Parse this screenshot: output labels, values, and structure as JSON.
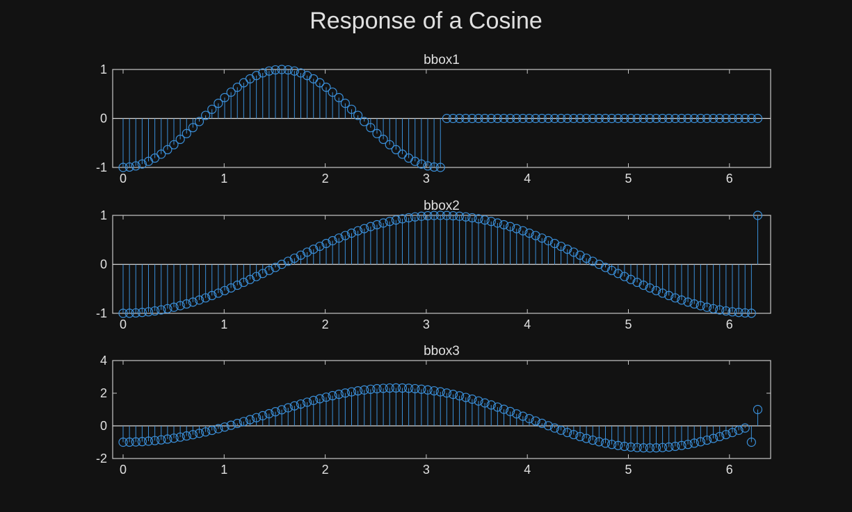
{
  "figure": {
    "title": "Response of a Cosine",
    "background": "#121212",
    "axes_color": "#c8c8c8",
    "text_color": "#e0e0e0",
    "series_color": "#3a8fd9"
  },
  "chart_data": [
    {
      "type": "stem",
      "title": "bbox1",
      "xlim": [
        0,
        6.28
      ],
      "ylim": [
        -1,
        1
      ],
      "xticks": [
        0,
        1,
        2,
        3,
        4,
        5,
        6
      ],
      "yticks": [
        -1,
        0,
        1
      ],
      "x_step": 0.0628,
      "n_points": 101,
      "values_description_formula": "y = -cos(2x) for x <= 3.08, else 0",
      "y": [
        -1.0,
        -0.992,
        -0.969,
        -0.93,
        -0.876,
        -0.809,
        -0.729,
        -0.637,
        -0.536,
        -0.426,
        -0.309,
        -0.187,
        -0.063,
        0.063,
        0.187,
        0.309,
        0.426,
        0.536,
        0.637,
        0.729,
        0.809,
        0.876,
        0.93,
        0.969,
        0.992,
        1.0,
        0.992,
        0.969,
        0.93,
        0.876,
        0.809,
        0.729,
        0.637,
        0.536,
        0.426,
        0.309,
        0.187,
        0.063,
        -0.063,
        -0.187,
        -0.309,
        -0.426,
        -0.536,
        -0.637,
        -0.729,
        -0.809,
        -0.876,
        -0.93,
        -0.969,
        -0.992,
        -1.0,
        0,
        0,
        0,
        0,
        0,
        0,
        0,
        0,
        0,
        0,
        0,
        0,
        0,
        0,
        0,
        0,
        0,
        0,
        0,
        0,
        0,
        0,
        0,
        0,
        0,
        0,
        0,
        0,
        0,
        0,
        0,
        0,
        0,
        0,
        0,
        0,
        0,
        0,
        0,
        0,
        0,
        0,
        0,
        0,
        0,
        0,
        0,
        0,
        0,
        0
      ]
    },
    {
      "type": "stem",
      "title": "bbox2",
      "xlim": [
        0,
        6.28
      ],
      "ylim": [
        -1,
        1
      ],
      "xticks": [
        0,
        1,
        2,
        3,
        4,
        5,
        6
      ],
      "yticks": [
        -1,
        0,
        1
      ],
      "x_step": 0.0628,
      "n_points": 101,
      "y": [
        -1.0,
        -0.998,
        -0.992,
        -0.982,
        -0.969,
        -0.951,
        -0.93,
        -0.905,
        -0.876,
        -0.844,
        -0.809,
        -0.771,
        -0.729,
        -0.685,
        -0.637,
        -0.588,
        -0.536,
        -0.482,
        -0.426,
        -0.368,
        -0.309,
        -0.249,
        -0.187,
        -0.125,
        -0.063,
        0.0,
        0.063,
        0.125,
        0.187,
        0.249,
        0.309,
        0.368,
        0.426,
        0.482,
        0.536,
        0.588,
        0.637,
        0.685,
        0.729,
        0.771,
        0.809,
        0.844,
        0.876,
        0.905,
        0.93,
        0.951,
        0.969,
        0.982,
        0.992,
        0.998,
        1.0,
        0.998,
        0.992,
        0.982,
        0.969,
        0.951,
        0.93,
        0.905,
        0.876,
        0.844,
        0.809,
        0.771,
        0.729,
        0.685,
        0.637,
        0.588,
        0.536,
        0.482,
        0.426,
        0.368,
        0.309,
        0.249,
        0.187,
        0.125,
        0.063,
        0.0,
        -0.063,
        -0.125,
        -0.187,
        -0.249,
        -0.309,
        -0.368,
        -0.426,
        -0.482,
        -0.536,
        -0.588,
        -0.637,
        -0.685,
        -0.729,
        -0.771,
        -0.809,
        -0.844,
        -0.876,
        -0.905,
        -0.93,
        -0.951,
        -0.969,
        -0.982,
        -0.992,
        -0.998,
        1.0
      ]
    },
    {
      "type": "stem",
      "title": "bbox3",
      "xlim": [
        0,
        6.28
      ],
      "ylim": [
        -2,
        4
      ],
      "xticks": [
        0,
        1,
        2,
        3,
        4,
        5,
        6
      ],
      "yticks": [
        -2,
        0,
        2,
        4
      ],
      "x_step": 0.0628,
      "n_points": 101,
      "y": [
        -1.0,
        -0.996,
        -0.984,
        -0.964,
        -0.937,
        -0.902,
        -0.86,
        -0.81,
        -0.753,
        -0.688,
        -0.618,
        -0.54,
        -0.457,
        -0.369,
        -0.275,
        -0.176,
        -0.072,
        0.036,
        0.149,
        0.264,
        0.382,
        0.502,
        0.622,
        0.744,
        0.866,
        0.986,
        1.106,
        1.224,
        1.338,
        1.45,
        1.558,
        1.661,
        1.758,
        1.85,
        1.935,
        2.012,
        2.082,
        2.144,
        2.197,
        2.241,
        2.276,
        2.301,
        2.317,
        2.323,
        2.318,
        2.304,
        2.28,
        2.245,
        2.201,
        2.147,
        2.084,
        2.011,
        1.93,
        1.84,
        1.742,
        1.637,
        1.524,
        1.405,
        1.281,
        1.151,
        1.016,
        0.877,
        0.735,
        0.591,
        0.446,
        0.3,
        0.154,
        0.009,
        -0.133,
        -0.272,
        -0.406,
        -0.534,
        -0.656,
        -0.77,
        -0.876,
        -0.973,
        -1.06,
        -1.136,
        -1.201,
        -1.255,
        -1.297,
        -1.327,
        -1.345,
        -1.351,
        -1.345,
        -1.327,
        -1.297,
        -1.255,
        -1.201,
        -1.136,
        -1.06,
        -0.973,
        -0.876,
        -0.77,
        -0.656,
        -0.534,
        -0.406,
        -0.272,
        -0.133,
        -1.0,
        1.0
      ]
    }
  ]
}
